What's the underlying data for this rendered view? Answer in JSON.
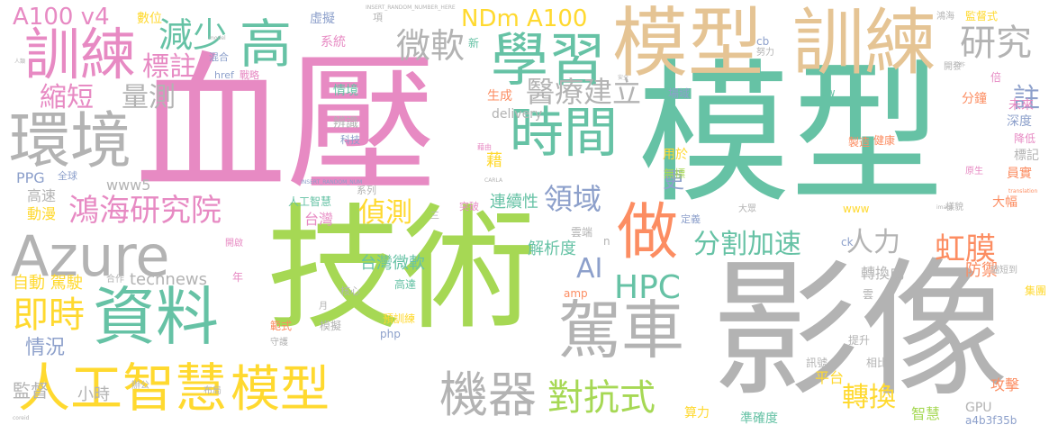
{
  "palette": {
    "pink": "#E78AC3",
    "teal": "#66C2A5",
    "green": "#A6D854",
    "gray": "#B3B3B3",
    "tan": "#E5C494",
    "blue": "#8DA0CB",
    "orange": "#FC8D62",
    "yellow": "#FFD92F"
  },
  "words": [
    {
      "text": "血壓",
      "color": "pink"
    },
    {
      "text": "模型",
      "color": "teal"
    },
    {
      "text": "技術",
      "color": "green"
    },
    {
      "text": "影像",
      "color": "gray"
    },
    {
      "text": "模型",
      "color": "tan"
    },
    {
      "text": "訓練",
      "color": "tan"
    },
    {
      "text": "學習",
      "color": "teal"
    },
    {
      "text": "訓練",
      "color": "pink"
    },
    {
      "text": "環境",
      "color": "gray"
    },
    {
      "text": "Azure",
      "color": "gray"
    },
    {
      "text": "資料",
      "color": "teal"
    },
    {
      "text": "人工智慧",
      "color": "yellow"
    },
    {
      "text": "模型",
      "color": "yellow"
    },
    {
      "text": "時間",
      "color": "teal"
    },
    {
      "text": "駕車",
      "color": "gray"
    },
    {
      "text": "做",
      "color": "orange"
    },
    {
      "text": "機器",
      "color": "gray"
    },
    {
      "text": "鴻海研究院",
      "color": "pink"
    },
    {
      "text": "高",
      "color": "teal"
    },
    {
      "text": "A100 v4",
      "color": "pink"
    },
    {
      "text": "NDm A100",
      "color": "yellow"
    },
    {
      "text": "研究",
      "color": "gray"
    },
    {
      "text": "減少",
      "color": "teal"
    },
    {
      "text": "微軟",
      "color": "gray"
    },
    {
      "text": "醫療建立",
      "color": "gray"
    },
    {
      "text": "對抗式",
      "color": "green"
    },
    {
      "text": "HPC",
      "color": "teal"
    },
    {
      "text": "AI",
      "color": "blue"
    },
    {
      "text": "分割加速",
      "color": "teal"
    },
    {
      "text": "虹膜",
      "color": "orange"
    },
    {
      "text": "即時",
      "color": "yellow"
    },
    {
      "text": "標註",
      "color": "pink"
    },
    {
      "text": "縮短",
      "color": "pink"
    },
    {
      "text": "量測",
      "color": "gray"
    },
    {
      "text": "偵測",
      "color": "yellow"
    },
    {
      "text": "領域",
      "color": "blue"
    },
    {
      "text": "人力",
      "color": "gray"
    },
    {
      "text": "轉換",
      "color": "yellow"
    },
    {
      "text": "註",
      "color": "blue"
    },
    {
      "text": "情況",
      "color": "blue"
    },
    {
      "text": "監督",
      "color": "gray"
    },
    {
      "text": "小時",
      "color": "gray"
    },
    {
      "text": "台灣微軟",
      "color": "teal"
    },
    {
      "text": "解析度",
      "color": "teal"
    },
    {
      "text": "連續性",
      "color": "teal"
    },
    {
      "text": "防禦",
      "color": "orange"
    },
    {
      "text": "轉換成",
      "color": "gray"
    },
    {
      "text": "更",
      "color": "blue"
    },
    {
      "text": "自動 駕駛",
      "color": "yellow"
    },
    {
      "text": "technews",
      "color": "gray"
    },
    {
      "text": "www5",
      "color": "gray"
    },
    {
      "text": "PPG",
      "color": "blue"
    },
    {
      "text": "高速",
      "color": "gray"
    },
    {
      "text": "動漫",
      "color": "yellow"
    },
    {
      "text": "台灣",
      "color": "pink"
    },
    {
      "text": "人工智慧",
      "color": "teal"
    },
    {
      "text": "平台",
      "color": "yellow"
    },
    {
      "text": "攻擊",
      "color": "orange"
    },
    {
      "text": "智慧",
      "color": "green"
    },
    {
      "text": "準確度",
      "color": "teal"
    },
    {
      "text": "算力",
      "color": "yellow"
    },
    {
      "text": "GPU",
      "color": "gray"
    },
    {
      "text": "a4b3f35b",
      "color": "blue"
    },
    {
      "text": "集團",
      "color": "yellow"
    },
    {
      "text": "數位",
      "color": "yellow"
    },
    {
      "text": "虛擬",
      "color": "blue"
    },
    {
      "text": "系統",
      "color": "pink"
    },
    {
      "text": "情境",
      "color": "teal"
    },
    {
      "text": "delivery",
      "color": "gray"
    },
    {
      "text": "辨識",
      "color": "gray"
    },
    {
      "text": "生成",
      "color": "orange"
    },
    {
      "text": "用於",
      "color": "yellow"
    },
    {
      "text": "無標",
      "color": "green"
    },
    {
      "text": "未來",
      "color": "pink"
    },
    {
      "text": "深度",
      "color": "blue"
    },
    {
      "text": "標記",
      "color": "gray"
    },
    {
      "text": "員實",
      "color": "orange"
    },
    {
      "text": "大幅",
      "color": "orange"
    },
    {
      "text": "分鐘",
      "color": "orange"
    },
    {
      "text": "降低",
      "color": "pink"
    },
    {
      "text": "場域",
      "color": "blue"
    },
    {
      "text": "製造",
      "color": "orange"
    },
    {
      "text": "健康",
      "color": "orange"
    },
    {
      "text": "雲端",
      "color": "gray"
    },
    {
      "text": "www",
      "color": "yellow"
    },
    {
      "text": "範式",
      "color": "orange"
    },
    {
      "text": "模擬",
      "color": "gray"
    },
    {
      "text": "預訓練",
      "color": "yellow"
    },
    {
      "text": "php",
      "color": "blue"
    },
    {
      "text": "amp",
      "color": "orange"
    },
    {
      "text": "高達",
      "color": "teal"
    },
    {
      "text": "提升",
      "color": "gray"
    },
    {
      "text": "訊號",
      "color": "gray"
    },
    {
      "text": "相比",
      "color": "gray"
    },
    {
      "text": "雲",
      "color": "gray"
    },
    {
      "text": "監督式",
      "color": "yellow"
    },
    {
      "text": "cb",
      "color": "blue"
    },
    {
      "text": "tw",
      "color": "teal"
    },
    {
      "text": "倍",
      "color": "pink"
    },
    {
      "text": "年",
      "color": "pink"
    },
    {
      "text": "新",
      "color": "teal"
    },
    {
      "text": "ck",
      "color": "blue"
    },
    {
      "text": "定義",
      "color": "blue"
    },
    {
      "text": "項",
      "color": "gray"
    },
    {
      "text": "混合",
      "color": "blue"
    },
    {
      "text": "戰略",
      "color": "pink"
    },
    {
      "text": "href",
      "color": "blue"
    },
    {
      "text": "科技",
      "color": "blue"
    },
    {
      "text": "突破",
      "color": "pink"
    },
    {
      "text": "系列",
      "color": "gray"
    },
    {
      "text": "核心",
      "color": "gray"
    },
    {
      "text": "全球",
      "color": "blue"
    },
    {
      "text": "開發",
      "color": "gray"
    },
    {
      "text": "努力",
      "color": "gray"
    },
    {
      "text": "縮短到",
      "color": "gray"
    },
    {
      "text": "鴻海",
      "color": "gray"
    },
    {
      "text": "原生",
      "color": "pink"
    },
    {
      "text": "辦公",
      "color": "gray"
    },
    {
      "text": "合作",
      "color": "gray"
    },
    {
      "text": "布局",
      "color": "gray"
    },
    {
      "text": "開啟",
      "color": "pink"
    },
    {
      "text": "月",
      "color": "gray"
    },
    {
      "text": "守護",
      "color": "gray"
    },
    {
      "text": "INSERT_RANDOM_NUMBER_HERE",
      "color": "gray"
    },
    {
      "text": "INSERT_RANDOM_NUM",
      "color": "blue"
    },
    {
      "text": "藉",
      "color": "yellow"
    },
    {
      "text": "藉由",
      "color": "pink"
    },
    {
      "text": "model",
      "color": "gray"
    },
    {
      "text": "translation",
      "color": "orange"
    },
    {
      "text": "CARLA",
      "color": "gray"
    },
    {
      "text": "image",
      "color": "gray"
    },
    {
      "text": "工作",
      "color": "gray"
    },
    {
      "text": "人類",
      "color": "gray"
    },
    {
      "text": "安全",
      "color": "gray"
    },
    {
      "text": "大眾",
      "color": "gray"
    },
    {
      "text": "n",
      "color": "gray"
    },
    {
      "text": "三",
      "color": "gray"
    },
    {
      "text": "樣貌",
      "color": "gray"
    },
    {
      "text": "coreid",
      "color": "gray"
    }
  ]
}
